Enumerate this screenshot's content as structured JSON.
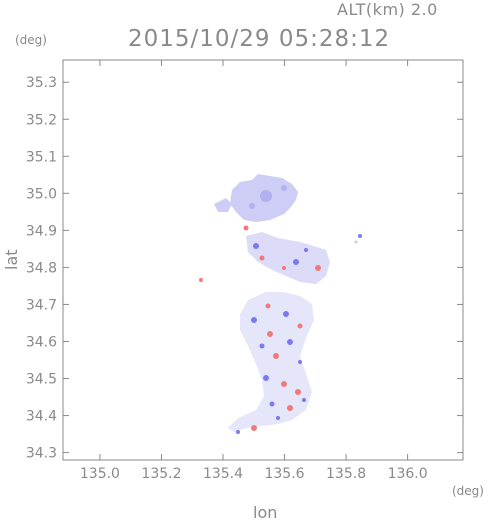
{
  "header": {
    "altitude": "ALT(km)  2.0",
    "datetime": "2015/10/29 05:28:12"
  },
  "axes": {
    "y_unit": "(deg)",
    "x_unit": "(deg)",
    "xlabel": "lon",
    "ylabel": "lat",
    "x_ticks": [
      "135.0",
      "135.2",
      "135.4",
      "135.6",
      "135.8",
      "136.0"
    ],
    "y_ticks": [
      "34.3",
      "34.4",
      "34.5",
      "34.6",
      "34.7",
      "34.8",
      "34.9",
      "35.0",
      "35.1",
      "35.2",
      "35.3"
    ],
    "xlim": [
      134.88,
      136.18
    ],
    "ylim": [
      34.28,
      35.36
    ],
    "grid": false
  },
  "colors": {
    "axis": "#8a8a8a",
    "positive": "#f07a7a",
    "negative": "#7a7af0",
    "neutral": "#c8c8f5"
  }
}
